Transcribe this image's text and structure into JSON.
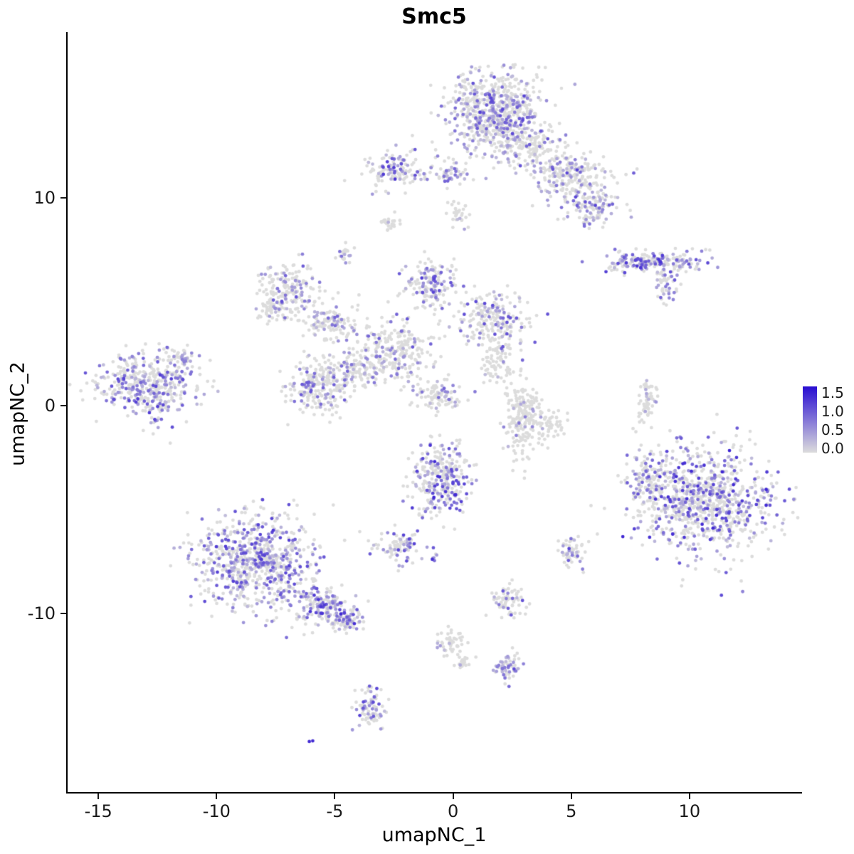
{
  "title": "Smc5",
  "axes": {
    "xlabel": "umapNC_1",
    "ylabel": "umapNC_2",
    "x_ticks": [
      {
        "v": -15,
        "label": "-15"
      },
      {
        "v": -10,
        "label": "-10"
      },
      {
        "v": -5,
        "label": "-5"
      },
      {
        "v": 0,
        "label": "0"
      },
      {
        "v": 5,
        "label": "5"
      },
      {
        "v": 10,
        "label": "10"
      }
    ],
    "y_ticks": [
      {
        "v": -10,
        "label": "-10"
      },
      {
        "v": 0,
        "label": "0"
      },
      {
        "v": 10,
        "label": "10"
      }
    ]
  },
  "legend": {
    "labels": [
      {
        "v": 1.5,
        "label": "1.5"
      },
      {
        "v": 1.0,
        "label": "1.0"
      },
      {
        "v": 0.5,
        "label": "0.5"
      },
      {
        "v": 0.0,
        "label": "0.0"
      }
    ],
    "bar_domain": [
      -0.12,
      1.68
    ],
    "color_high": "#280DD2",
    "color_low": "#DCDCDC"
  },
  "chart_data": {
    "type": "scatter",
    "title": "Smc5",
    "xlabel": "umapNC_1",
    "ylabel": "umapNC_2",
    "xlim": [
      -16.3,
      14.7
    ],
    "ylim": [
      -18.6,
      18.0
    ],
    "point_radius": 2.4,
    "color_scale": {
      "low": "#DCDCDC",
      "high": "#280DD2",
      "value_domain": [
        0,
        1.6
      ]
    },
    "legend_ticks": [
      1.5,
      1.0,
      0.5,
      0.0
    ],
    "clusters": [
      {
        "x": 1.8,
        "y": 14.1,
        "sx": 0.95,
        "sy": 0.95,
        "n": 650,
        "f": 0.3,
        "hi": 0.7
      },
      {
        "x": 3.3,
        "y": 12.6,
        "sx": 0.6,
        "sy": 0.6,
        "n": 150,
        "f": 0.25,
        "hi": 0.6
      },
      {
        "x": 4.9,
        "y": 11.2,
        "sx": 0.75,
        "sy": 0.6,
        "n": 220,
        "f": 0.25,
        "hi": 0.7
      },
      {
        "x": 5.9,
        "y": 9.7,
        "sx": 0.55,
        "sy": 0.5,
        "n": 130,
        "f": 0.3,
        "hi": 0.7
      },
      {
        "x": -2.4,
        "y": 11.4,
        "sx": 0.55,
        "sy": 0.5,
        "n": 130,
        "f": 0.35,
        "hi": 0.8
      },
      {
        "x": -0.3,
        "y": 11.2,
        "sx": 0.45,
        "sy": 0.35,
        "n": 60,
        "f": 0.3,
        "hi": 0.6
      },
      {
        "x": 0.3,
        "y": 9.3,
        "sx": 0.25,
        "sy": 0.35,
        "n": 30,
        "f": 0.2,
        "hi": 0.5
      },
      {
        "x": 8.5,
        "y": 6.9,
        "sx": 1.05,
        "sy": 0.28,
        "n": 210,
        "f": 0.55,
        "hi": 0.8
      },
      {
        "x": 9.0,
        "y": 5.8,
        "sx": 0.3,
        "sy": 0.35,
        "n": 40,
        "f": 0.4,
        "hi": 0.6
      },
      {
        "x": -2.7,
        "y": 8.8,
        "sx": 0.25,
        "sy": 0.18,
        "n": 25,
        "f": 0.05,
        "hi": 0.3
      },
      {
        "x": -4.5,
        "y": 7.3,
        "sx": 0.18,
        "sy": 0.3,
        "n": 22,
        "f": 0.35,
        "hi": 0.7
      },
      {
        "x": -6.9,
        "y": 5.7,
        "sx": 0.6,
        "sy": 0.55,
        "n": 160,
        "f": 0.35,
        "hi": 0.7
      },
      {
        "x": -7.6,
        "y": 4.7,
        "sx": 0.4,
        "sy": 0.35,
        "n": 60,
        "f": 0.25,
        "hi": 0.5
      },
      {
        "x": -5.2,
        "y": 4.0,
        "sx": 0.65,
        "sy": 0.5,
        "n": 130,
        "f": 0.2,
        "hi": 0.5
      },
      {
        "x": -1.0,
        "y": 5.7,
        "sx": 0.55,
        "sy": 0.65,
        "n": 160,
        "f": 0.35,
        "hi": 0.8
      },
      {
        "x": 1.7,
        "y": 4.1,
        "sx": 0.75,
        "sy": 0.6,
        "n": 210,
        "f": 0.3,
        "hi": 0.7
      },
      {
        "x": 1.9,
        "y": 2.0,
        "sx": 0.4,
        "sy": 0.5,
        "n": 70,
        "f": 0.2,
        "hi": 0.5
      },
      {
        "x": -2.6,
        "y": 2.6,
        "sx": 0.9,
        "sy": 0.75,
        "n": 260,
        "f": 0.22,
        "hi": 0.6
      },
      {
        "x": -4.2,
        "y": 1.7,
        "sx": 0.5,
        "sy": 0.45,
        "n": 90,
        "f": 0.2,
        "hi": 0.5
      },
      {
        "x": -5.6,
        "y": 0.9,
        "sx": 0.7,
        "sy": 0.65,
        "n": 230,
        "f": 0.25,
        "hi": 0.6
      },
      {
        "x": -0.7,
        "y": 0.5,
        "sx": 0.55,
        "sy": 0.35,
        "n": 90,
        "f": 0.3,
        "hi": 0.6
      },
      {
        "x": -12.9,
        "y": 1.0,
        "sx": 1.0,
        "sy": 0.78,
        "n": 430,
        "f": 0.4,
        "hi": 0.75
      },
      {
        "x": -11.4,
        "y": 2.2,
        "sx": 0.35,
        "sy": 0.3,
        "n": 40,
        "f": 0.3,
        "hi": 0.6
      },
      {
        "x": 3.0,
        "y": -0.6,
        "sx": 0.4,
        "sy": 0.95,
        "n": 210,
        "f": 0.07,
        "hi": 0.4
      },
      {
        "x": 4.2,
        "y": -0.9,
        "sx": 0.3,
        "sy": 0.4,
        "n": 40,
        "f": 0.05,
        "hi": 0.3
      },
      {
        "x": 8.2,
        "y": 0.2,
        "sx": 0.17,
        "sy": 0.6,
        "n": 60,
        "f": 0.12,
        "hi": 0.5
      },
      {
        "x": -0.5,
        "y": -3.6,
        "sx": 0.65,
        "sy": 0.85,
        "n": 300,
        "f": 0.42,
        "hi": 0.85
      },
      {
        "x": -2.3,
        "y": -6.8,
        "sx": 0.5,
        "sy": 0.4,
        "n": 90,
        "f": 0.3,
        "hi": 0.7
      },
      {
        "x": -0.8,
        "y": -7.3,
        "sx": 0.12,
        "sy": 0.12,
        "n": 6,
        "f": 0.6,
        "hi": 0.8
      },
      {
        "x": 10.6,
        "y": -4.6,
        "sx": 1.45,
        "sy": 1.3,
        "n": 900,
        "f": 0.38,
        "hi": 0.85
      },
      {
        "x": 8.3,
        "y": -3.6,
        "sx": 0.45,
        "sy": 0.8,
        "n": 90,
        "f": 0.25,
        "hi": 0.6
      },
      {
        "x": 5.1,
        "y": -7.1,
        "sx": 0.3,
        "sy": 0.35,
        "n": 55,
        "f": 0.3,
        "hi": 0.7
      },
      {
        "x": -8.3,
        "y": -7.6,
        "sx": 1.25,
        "sy": 1.1,
        "n": 720,
        "f": 0.45,
        "hi": 0.75
      },
      {
        "x": -5.6,
        "y": -9.7,
        "sx": 0.7,
        "sy": 0.5,
        "n": 160,
        "f": 0.45,
        "hi": 0.8
      },
      {
        "x": -4.4,
        "y": -10.3,
        "sx": 0.35,
        "sy": 0.3,
        "n": 80,
        "f": 0.55,
        "hi": 0.85
      },
      {
        "x": -0.1,
        "y": -11.4,
        "sx": 0.3,
        "sy": 0.35,
        "n": 45,
        "f": 0.1,
        "hi": 0.4
      },
      {
        "x": 0.4,
        "y": -12.3,
        "sx": 0.2,
        "sy": 0.25,
        "n": 20,
        "f": 0.1,
        "hi": 0.4
      },
      {
        "x": 2.3,
        "y": -9.4,
        "sx": 0.35,
        "sy": 0.45,
        "n": 70,
        "f": 0.25,
        "hi": 0.6
      },
      {
        "x": 2.3,
        "y": -12.6,
        "sx": 0.3,
        "sy": 0.35,
        "n": 55,
        "f": 0.5,
        "hi": 0.7
      },
      {
        "x": -3.5,
        "y": -14.5,
        "sx": 0.3,
        "sy": 0.55,
        "n": 75,
        "f": 0.45,
        "hi": 0.7
      },
      {
        "x": -6.0,
        "y": -16.2,
        "sx": 0.08,
        "sy": 0.08,
        "n": 2,
        "f": 1.0,
        "hi": 0.15,
        "b": 1.35
      }
    ]
  }
}
